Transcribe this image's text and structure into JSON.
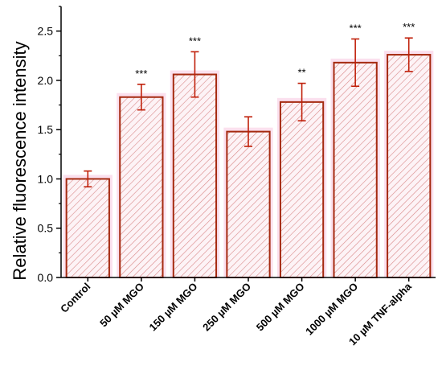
{
  "chart_data": {
    "type": "bar",
    "title": "",
    "xlabel": "",
    "ylabel": "Relative fluorescence intensity",
    "ylim": [
      0,
      2.75
    ],
    "yticks": [
      0.0,
      0.5,
      1.0,
      1.5,
      2.0,
      2.5
    ],
    "ytick_labels": [
      "0.0",
      "0.5",
      "1.0",
      "1.5",
      "2.0",
      "2.5"
    ],
    "categories": [
      "Control",
      "50 µM MGO",
      "150 µM MGO",
      "250 µM MGO",
      "500 µM MGO",
      "1000 µM MGO",
      "10 µM TNF-alpha"
    ],
    "values": [
      1.0,
      1.83,
      2.06,
      1.48,
      1.78,
      2.18,
      2.26
    ],
    "errors": [
      0.08,
      0.13,
      0.23,
      0.15,
      0.19,
      0.24,
      0.17
    ],
    "significance": [
      "",
      "***",
      "***",
      "",
      "**",
      "***",
      "***"
    ],
    "grid": false,
    "legend": "none",
    "colors": {
      "bar_edge": "#a52a10",
      "hatch": "#d98888",
      "bar_glow": "#f7c6e0",
      "error_bar": "#c0200a",
      "axis": "#000000"
    }
  }
}
